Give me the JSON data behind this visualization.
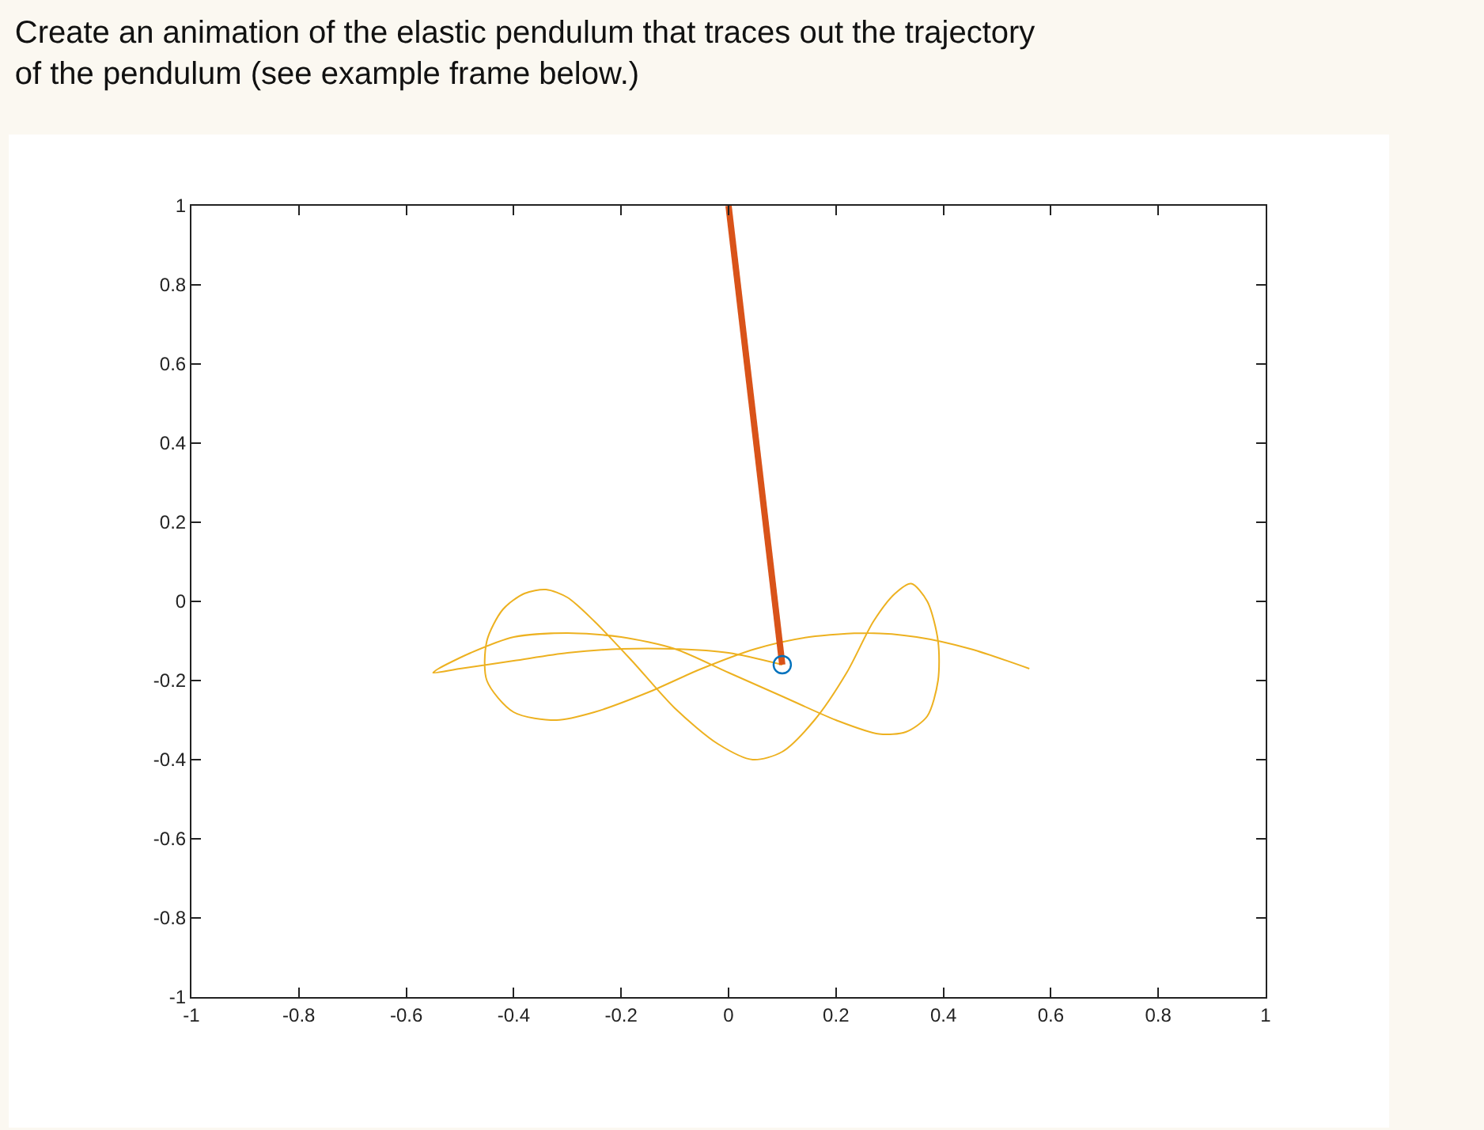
{
  "chart_data": {
    "type": "line",
    "title": "Create an animation of the elastic pendulum that traces out the trajectory of the pendulum (see example frame below.)",
    "xlim": [
      -1,
      1
    ],
    "ylim": [
      -1,
      1
    ],
    "xticks": [
      -1,
      -0.8,
      -0.6,
      -0.4,
      -0.2,
      0,
      0.2,
      0.4,
      0.6,
      0.8,
      1
    ],
    "yticks": [
      -1,
      -0.8,
      -0.6,
      -0.4,
      -0.2,
      0,
      0.2,
      0.4,
      0.6,
      0.8,
      1
    ],
    "series": [
      {
        "color": "#edb120",
        "x": [
          0.56,
          0.45,
          0.35,
          0.26,
          0.15,
          0.05,
          -0.05,
          -0.15,
          -0.25,
          -0.32,
          -0.4,
          -0.45,
          -0.45,
          -0.42,
          -0.38,
          -0.34,
          -0.3,
          -0.25,
          -0.18,
          -0.1,
          -0.02,
          0.045,
          0.1,
          0.16,
          0.22,
          0.27,
          0.31,
          0.34,
          0.37,
          0.39,
          0.39,
          0.37,
          0.33,
          0.28,
          0.2,
          0.1,
          0.0,
          -0.1,
          -0.2,
          -0.3,
          -0.4,
          -0.48,
          -0.54,
          -0.55,
          -0.5,
          -0.4,
          -0.3,
          -0.2,
          -0.1,
          0.0,
          0.1
        ],
        "values": [
          -0.17,
          -0.12,
          -0.09,
          -0.08,
          -0.09,
          -0.12,
          -0.17,
          -0.23,
          -0.28,
          -0.3,
          -0.28,
          -0.2,
          -0.1,
          -0.02,
          0.02,
          0.03,
          0.01,
          -0.05,
          -0.15,
          -0.27,
          -0.36,
          -0.4,
          -0.38,
          -0.3,
          -0.18,
          -0.05,
          0.02,
          0.045,
          0.0,
          -0.1,
          -0.2,
          -0.29,
          -0.33,
          -0.335,
          -0.3,
          -0.24,
          -0.18,
          -0.12,
          -0.09,
          -0.08,
          -0.09,
          -0.13,
          -0.17,
          -0.18,
          -0.17,
          -0.15,
          -0.13,
          -0.12,
          -0.12,
          -0.13,
          -0.16
        ]
      },
      {
        "type": "line",
        "color": "#d95319",
        "x": [
          0,
          0.1
        ],
        "values": [
          1,
          -0.16
        ]
      },
      {
        "type": "scatter",
        "color": "#0072bd",
        "marker": "circle",
        "x": [
          0.1
        ],
        "values": [
          -0.16
        ]
      }
    ]
  }
}
